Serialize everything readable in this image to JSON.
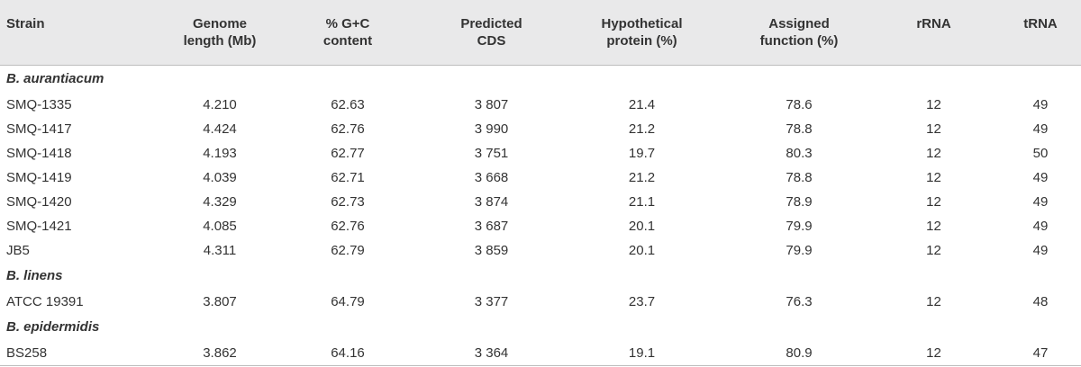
{
  "table": {
    "headers": [
      [
        "Strain"
      ],
      [
        "Genome",
        "length (Mb)"
      ],
      [
        "% G+C",
        "content"
      ],
      [
        "Predicted",
        "CDS"
      ],
      [
        "Hypothetical",
        "protein (%)"
      ],
      [
        "Assigned",
        "function (%)"
      ],
      [
        "rRNA"
      ],
      [
        "tRNA"
      ]
    ],
    "groups": [
      {
        "name": "B. aurantiacum",
        "rows": [
          [
            "SMQ-1335",
            "4.210",
            "62.63",
            "3 807",
            "21.4",
            "78.6",
            "12",
            "49"
          ],
          [
            "SMQ-1417",
            "4.424",
            "62.76",
            "3 990",
            "21.2",
            "78.8",
            "12",
            "49"
          ],
          [
            "SMQ-1418",
            "4.193",
            "62.77",
            "3 751",
            "19.7",
            "80.3",
            "12",
            "50"
          ],
          [
            "SMQ-1419",
            "4.039",
            "62.71",
            "3 668",
            "21.2",
            "78.8",
            "12",
            "49"
          ],
          [
            "SMQ-1420",
            "4.329",
            "62.73",
            "3 874",
            "21.1",
            "78.9",
            "12",
            "49"
          ],
          [
            "SMQ-1421",
            "4.085",
            "62.76",
            "3 687",
            "20.1",
            "79.9",
            "12",
            "49"
          ],
          [
            "JB5",
            "4.311",
            "62.79",
            "3 859",
            "20.1",
            "79.9",
            "12",
            "49"
          ]
        ]
      },
      {
        "name": "B. linens",
        "rows": [
          [
            "ATCC 19391",
            "3.807",
            "64.79",
            "3 377",
            "23.7",
            "76.3",
            "12",
            "48"
          ]
        ]
      },
      {
        "name": "B. epidermidis",
        "rows": [
          [
            "BS258",
            "3.862",
            "64.16",
            "3 364",
            "19.1",
            "80.9",
            "12",
            "47"
          ]
        ]
      }
    ]
  }
}
